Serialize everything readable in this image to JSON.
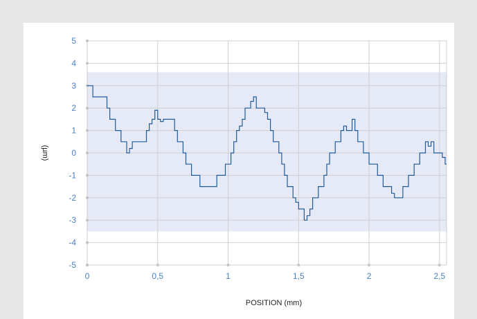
{
  "chart_data": {
    "type": "line",
    "title": "",
    "xlabel": "POSITION (mm)",
    "ylabel": "(µm)",
    "xlim": [
      0,
      2.55
    ],
    "ylim": [
      -5,
      5
    ],
    "x_ticks": [
      0,
      0.5,
      1,
      1.5,
      2,
      2.5
    ],
    "x_tick_labels": [
      "0",
      "0,5",
      "1",
      "1,5",
      "2",
      "2,5"
    ],
    "y_ticks": [
      5,
      4,
      3,
      2,
      1,
      0,
      -1,
      -2,
      -3,
      -4,
      -5
    ],
    "y_tick_labels": [
      "5",
      "4",
      "3",
      "2",
      "1",
      "0",
      "-1",
      "-2",
      "-3",
      "-4",
      "-5"
    ],
    "tolerance_band": [
      -3.5,
      3.6
    ],
    "grid": true,
    "legend": "none",
    "colors": {
      "line": "#1f5c9e",
      "band": "#e6e9f6",
      "grid": "#cfcfcf",
      "tick_text": "#4a7fc4"
    },
    "series": [
      {
        "x": [
          0,
          0.02,
          0.04,
          0.06,
          0.08,
          0.1,
          0.12,
          0.14,
          0.16,
          0.18,
          0.2,
          0.22,
          0.24,
          0.26,
          0.28,
          0.3,
          0.32,
          0.34,
          0.36,
          0.38,
          0.4,
          0.42,
          0.44,
          0.46,
          0.48,
          0.5,
          0.52,
          0.54,
          0.56,
          0.58,
          0.6,
          0.62,
          0.64,
          0.66,
          0.68,
          0.7,
          0.72,
          0.74,
          0.76,
          0.78,
          0.8,
          0.82,
          0.84,
          0.86,
          0.88,
          0.9,
          0.92,
          0.94,
          0.96,
          0.98,
          1.0,
          1.02,
          1.04,
          1.06,
          1.08,
          1.1,
          1.12,
          1.14,
          1.16,
          1.18,
          1.2,
          1.22,
          1.24,
          1.26,
          1.28,
          1.3,
          1.32,
          1.34,
          1.36,
          1.38,
          1.4,
          1.42,
          1.44,
          1.46,
          1.48,
          1.5,
          1.52,
          1.54,
          1.56,
          1.58,
          1.6,
          1.62,
          1.64,
          1.66,
          1.68,
          1.7,
          1.72,
          1.74,
          1.76,
          1.78,
          1.8,
          1.82,
          1.84,
          1.86,
          1.88,
          1.9,
          1.92,
          1.94,
          1.96,
          1.98,
          2.0,
          2.02,
          2.04,
          2.06,
          2.08,
          2.1,
          2.12,
          2.14,
          2.16,
          2.18,
          2.2,
          2.22,
          2.24,
          2.26,
          2.28,
          2.3,
          2.32,
          2.34,
          2.36,
          2.38,
          2.4,
          2.42,
          2.44,
          2.46,
          2.48,
          2.5,
          2.52,
          2.54,
          2.55
        ],
        "y": [
          3.0,
          3.0,
          2.5,
          2.5,
          2.5,
          2.5,
          2.5,
          2.0,
          1.5,
          1.5,
          1.0,
          1.0,
          0.5,
          0.5,
          0.0,
          0.2,
          0.5,
          0.5,
          0.5,
          0.5,
          0.5,
          1.0,
          1.3,
          1.5,
          1.9,
          1.5,
          1.4,
          1.5,
          1.5,
          1.5,
          1.5,
          1.0,
          0.5,
          0.5,
          0.0,
          -0.5,
          -0.5,
          -1.0,
          -1.0,
          -1.0,
          -1.5,
          -1.5,
          -1.5,
          -1.5,
          -1.5,
          -1.5,
          -1.0,
          -1.0,
          -1.0,
          -0.5,
          -0.5,
          0.0,
          0.5,
          1.0,
          1.2,
          1.5,
          2.0,
          2.0,
          2.3,
          2.5,
          2.0,
          2.0,
          2.0,
          1.8,
          1.5,
          1.0,
          0.5,
          0.5,
          0.0,
          -0.5,
          -1.0,
          -1.5,
          -1.5,
          -2.0,
          -2.2,
          -2.5,
          -2.5,
          -3.0,
          -2.8,
          -2.5,
          -2.0,
          -2.0,
          -1.5,
          -1.5,
          -1.0,
          -0.5,
          0.0,
          0.0,
          0.5,
          0.5,
          1.0,
          1.2,
          1.0,
          1.0,
          1.5,
          1.0,
          0.5,
          0.5,
          0.0,
          0.0,
          -0.5,
          -0.5,
          -0.5,
          -1.0,
          -1.0,
          -1.5,
          -1.5,
          -1.5,
          -1.8,
          -2.0,
          -2.0,
          -2.0,
          -1.5,
          -1.5,
          -1.0,
          -1.0,
          -0.5,
          -0.5,
          0.0,
          0.0,
          0.5,
          0.3,
          0.5,
          0.0,
          0.0,
          0.0,
          -0.2,
          -0.5,
          -0.5
        ]
      }
    ]
  }
}
